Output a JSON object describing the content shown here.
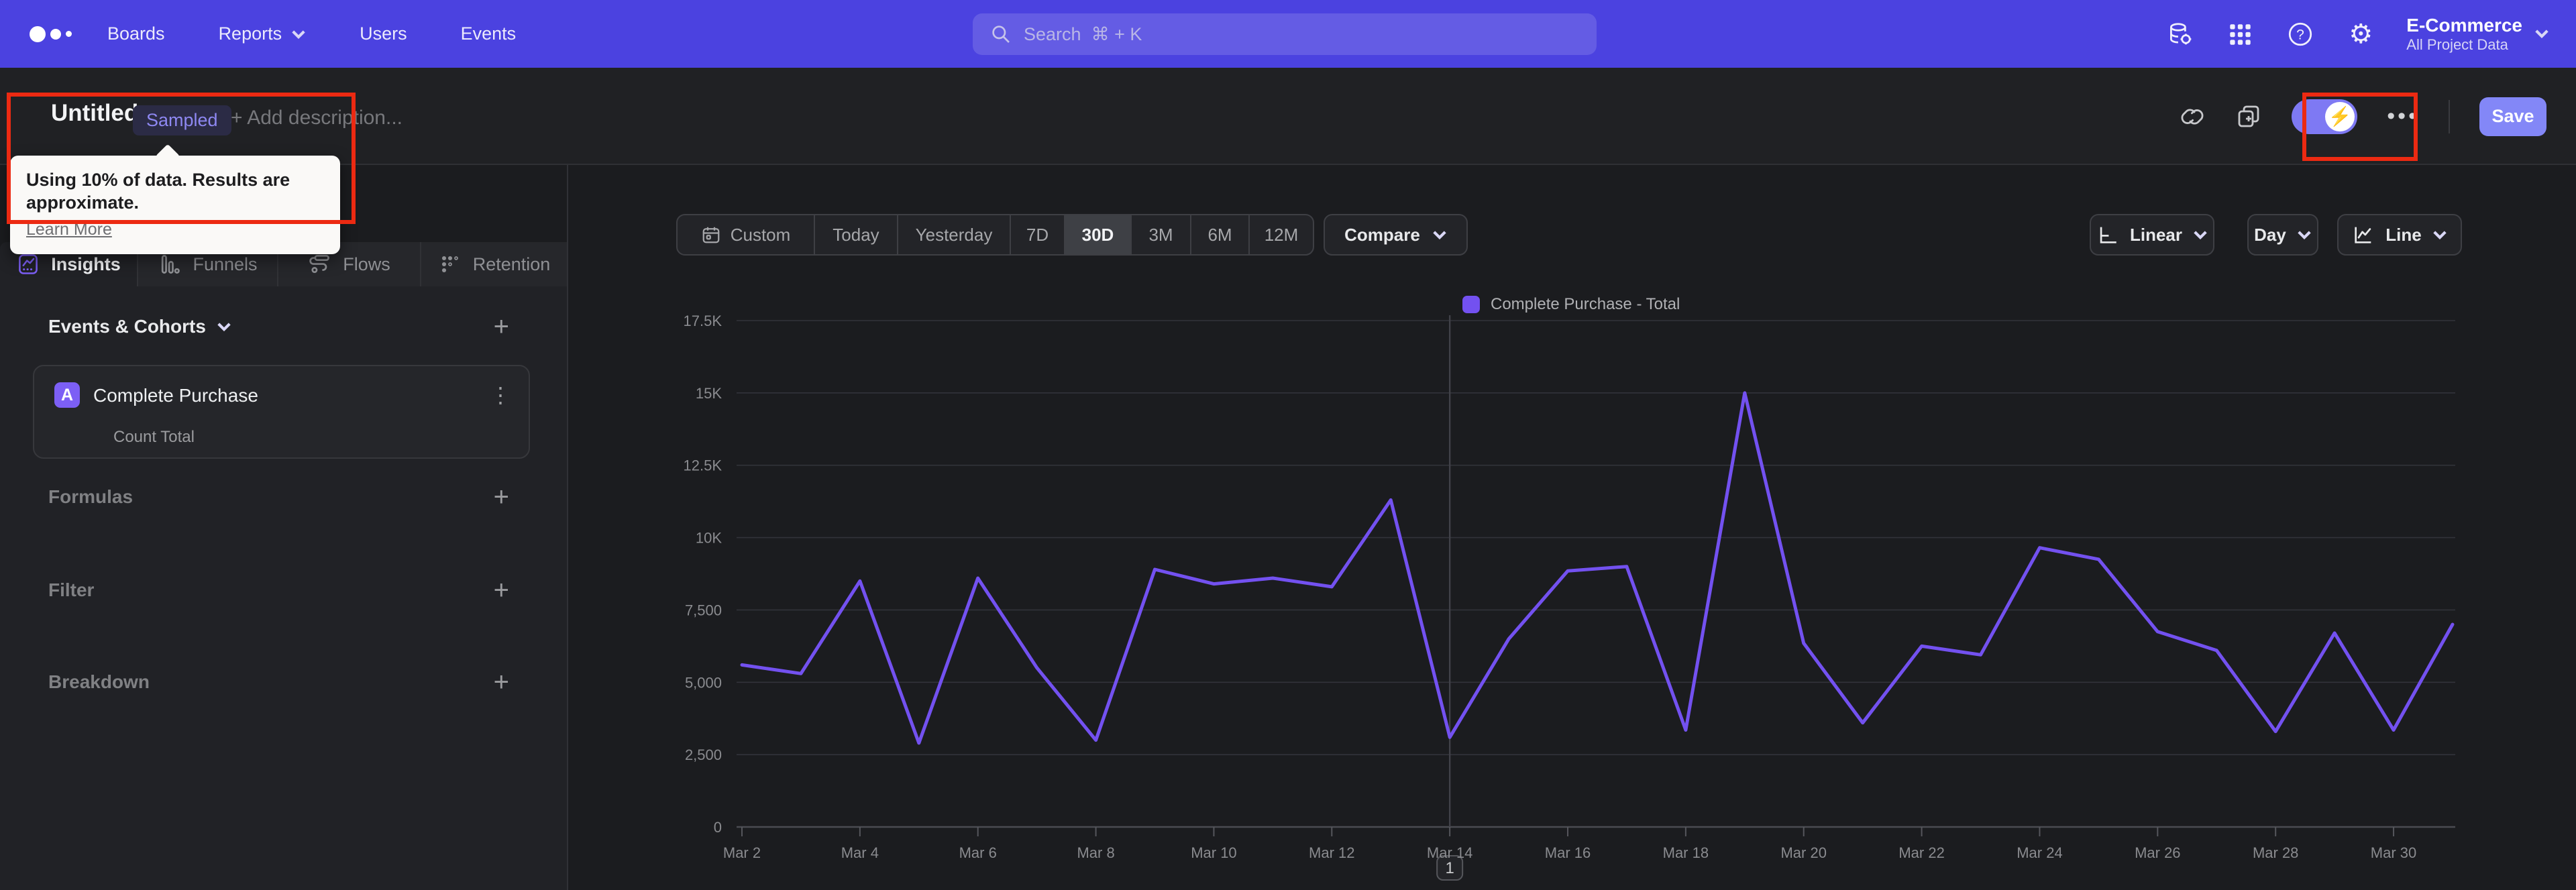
{
  "nav": {
    "logo_name": "mixpanel-logo",
    "items": [
      {
        "label": "Boards"
      },
      {
        "label": "Reports",
        "has_chevron": true
      },
      {
        "label": "Users"
      },
      {
        "label": "Events"
      }
    ],
    "search": {
      "placeholder": "Search",
      "shortcut": "⌘ + K"
    },
    "icon_names": [
      "data-management-icon",
      "apps-grid-icon",
      "help-icon",
      "settings-gear-icon"
    ],
    "project": {
      "name": "E-Commerce",
      "scope": "All Project Data"
    }
  },
  "header": {
    "title": "Untitled",
    "badge": "Sampled",
    "add_description": "+ Add description...",
    "more_label": "•••",
    "save_label": "Save",
    "tooltip": {
      "text": "Using 10% of data. Results are approximate.",
      "link": "Learn More"
    }
  },
  "tabs": [
    {
      "label": "Insights",
      "active": true
    },
    {
      "label": "Funnels",
      "active": false
    },
    {
      "label": "Flows",
      "active": false
    },
    {
      "label": "Retention",
      "active": false
    }
  ],
  "sidebar": {
    "events_header": "Events & Cohorts",
    "event_card": {
      "badge": "A",
      "title": "Complete Purchase",
      "subtitle": "Count Total",
      "kebab": "⋮"
    },
    "sections": [
      {
        "label": "Formulas"
      },
      {
        "label": "Filter"
      },
      {
        "label": "Breakdown"
      }
    ]
  },
  "controls": {
    "ranges": [
      "Custom",
      "Today",
      "Yesterday",
      "7D",
      "30D",
      "3M",
      "6M",
      "12M"
    ],
    "active_range": "30D",
    "compare_label": "Compare",
    "linear_label": "Linear",
    "day_label": "Day",
    "line_label": "Line"
  },
  "chart_data": {
    "type": "line",
    "title": "Complete Purchase - Total",
    "x": [
      "Mar 2",
      "Mar 3",
      "Mar 4",
      "Mar 5",
      "Mar 6",
      "Mar 7",
      "Mar 8",
      "Mar 9",
      "Mar 10",
      "Mar 11",
      "Mar 12",
      "Mar 13",
      "Mar 14",
      "Mar 15",
      "Mar 16",
      "Mar 17",
      "Mar 18",
      "Mar 19",
      "Mar 20",
      "Mar 21",
      "Mar 22",
      "Mar 23",
      "Mar 24",
      "Mar 25",
      "Mar 26",
      "Mar 27",
      "Mar 28",
      "Mar 29",
      "Mar 30",
      "Mar 31"
    ],
    "x_tick_every": 2,
    "series": [
      {
        "name": "Complete Purchase - Total",
        "color": "#7351f0",
        "values": [
          5600,
          5300,
          8500,
          2900,
          8600,
          5500,
          3000,
          8900,
          8400,
          8600,
          8300,
          11300,
          3100,
          6500,
          8850,
          9000,
          3350,
          15000,
          6350,
          3600,
          6250,
          5950,
          9650,
          9250,
          6750,
          6100,
          3300,
          6700,
          3350,
          7000
        ]
      }
    ],
    "ylim": [
      0,
      17500
    ],
    "y_ticks": [
      {
        "v": 0,
        "label": "0"
      },
      {
        "v": 2500,
        "label": "2,500"
      },
      {
        "v": 5000,
        "label": "5,000"
      },
      {
        "v": 7500,
        "label": "7,500"
      },
      {
        "v": 10000,
        "label": "10K"
      },
      {
        "v": 12500,
        "label": "12.5K"
      },
      {
        "v": 15000,
        "label": "15K"
      },
      {
        "v": 17500,
        "label": "17.5K"
      }
    ],
    "grid": true,
    "legend_position": "top-center",
    "annotation": {
      "x": "Mar 14",
      "label": "1"
    }
  },
  "colors": {
    "nav_bg": "#4b42e0",
    "page_bg": "#1b1c1f",
    "panel_bg": "#212226",
    "accent_line": "#7351f0",
    "save_button": "#8387f7",
    "annotation_red": "#ec2a12",
    "sampled_badge_text": "#8e88f2"
  }
}
